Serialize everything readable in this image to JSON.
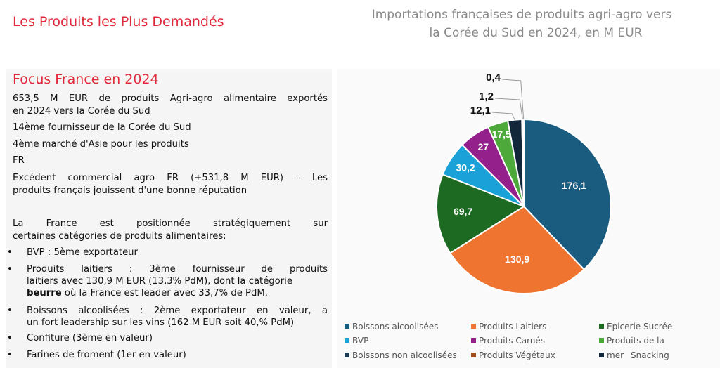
{
  "page_title": "Les Produits les Plus Demandés",
  "focus": {
    "title": "Focus France en 2024",
    "p1_l1": "653,5 M EUR de produits Agri-agro alimentaire exportés",
    "p1_l2": "en 2024 vers la Corée du Sud",
    "p2": "14ème fournisseur de la Corée du Sud",
    "p3_l1": "4ème marché d'Asie pour les produits",
    "p3_l2": "FR",
    "p4_l1": "Excédent commercial agro FR (+531,8 M EUR) – Les",
    "p4_l2": "produits français jouissent d'une bonne réputation",
    "p5_l1": "La France est positionnée stratégiquement sur",
    "p5_l2": "certaines catégories de produits alimentaires:",
    "b1": "BVP : 5ème exportateur",
    "b2_l1": "Produits laitiers : 3ème fournisseur de produits",
    "b2_l2": "laitiers avec 130,9 M EUR (13,3% PdM), dont la catégorie",
    "b2_l3_bold": "beurre",
    "b2_l3_rest": " où la France est leader avec 33,7% de PdM.",
    "b3_l1": "Boissons alcoolisées : 2ème exportateur en valeur, a",
    "b3_l2": "un fort leadership sur les vins (162 M EUR soit 40,% PdM)",
    "b4": "Confiture (3ème en valeur)",
    "b5": "Farines de froment (1er en valeur)",
    "bullet_char": "•"
  },
  "chart_data": {
    "type": "pie",
    "title_l1": "Importations françaises de produits agri-agro vers",
    "title_l2": "la Corée du Sud en 2024, en M EUR",
    "slices": [
      {
        "label": "Boissons alcoolisées",
        "value": 176.1,
        "display": "176,1",
        "color": "#1a5c80"
      },
      {
        "label": "Produits Laitiers",
        "value": 130.9,
        "display": "130,9",
        "color": "#ef7430"
      },
      {
        "label": "Épicerie Sucrée",
        "value": 69.7,
        "display": "69,7",
        "color": "#1d6a22"
      },
      {
        "label": "BVP",
        "value": 30.2,
        "display": "30,2",
        "color": "#1aa2d8"
      },
      {
        "label": "Produits Carnés",
        "value": 27,
        "display": "27",
        "color": "#94208c"
      },
      {
        "label": "Produits de la mer",
        "value": 17.5,
        "display": "17,5",
        "color": "#4daa3a"
      },
      {
        "label": "Snacking",
        "value": 12.1,
        "display": "12,1",
        "color": "#12283a"
      },
      {
        "label": "Boissons non alcoolisées",
        "value": 1.2,
        "display": "1,2",
        "color": "#1b3a4f"
      },
      {
        "label": "Produits Végétaux",
        "value": 0.4,
        "display": "0,4",
        "color": "#a04e20"
      }
    ],
    "legend": {
      "boissons_alcoolisees": "Boissons alcoolisées",
      "produits_laitiers": "Produits Laitiers",
      "epicerie_sucree": "Épicerie Sucrée",
      "bvp": "BVP",
      "produits_carnes": "Produits Carnés",
      "produits_de_la": "Produits de la",
      "boissons_non_alcoolisees": "Boissons non alcoolisées",
      "produits_vegetaux": "Produits Végétaux",
      "mer": "mer",
      "snacking": "Snacking"
    },
    "legend_position": "bottom"
  }
}
